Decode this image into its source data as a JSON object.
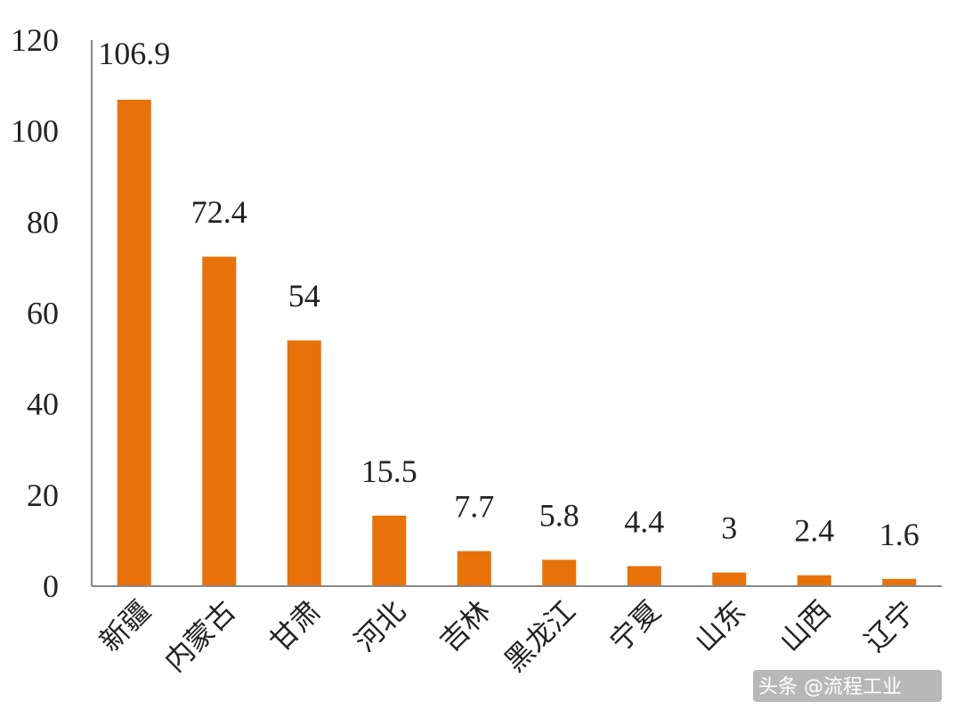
{
  "chart_data": {
    "type": "bar",
    "categories": [
      "新疆",
      "内蒙古",
      "甘肃",
      "河北",
      "吉林",
      "黑龙江",
      "宁夏",
      "山东",
      "山西",
      "辽宁"
    ],
    "values": [
      106.9,
      72.4,
      54,
      15.5,
      7.7,
      5.8,
      4.4,
      3,
      2.4,
      1.6
    ],
    "value_labels": [
      "106.9",
      "72.4",
      "54",
      "15.5",
      "7.7",
      "5.8",
      "4.4",
      "3",
      "2.4",
      "1.6"
    ],
    "ylim": [
      0,
      120
    ],
    "yticks": [
      "0",
      "20",
      "40",
      "60",
      "80",
      "100",
      "120"
    ],
    "bar_color": "#e8710a",
    "grid": false,
    "title": "",
    "xlabel": "",
    "ylabel": ""
  },
  "watermark": "头条 @流程工业"
}
